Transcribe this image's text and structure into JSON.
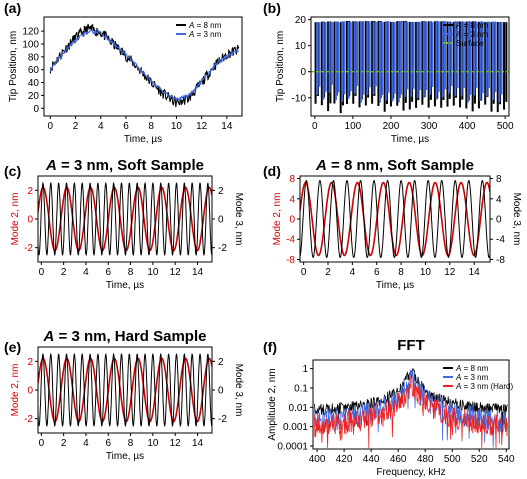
{
  "chart_data": [
    {
      "panel": "(a)",
      "type": "line",
      "title": "",
      "xlabel": "Time, µs",
      "ylabel": "Tip Position, nm",
      "xlim": [
        -0.5,
        15.2
      ],
      "ylim": [
        -12,
        142
      ],
      "xticks": [
        0,
        2,
        4,
        6,
        8,
        10,
        12,
        14
      ],
      "yticks": [
        0,
        20,
        40,
        60,
        80,
        100,
        120
      ],
      "legend_position": "top-right",
      "series": [
        {
          "name": "A = 8 nm",
          "color": "#000000",
          "x": [
            0,
            1,
            2,
            3,
            4,
            5,
            6,
            7,
            8,
            9,
            10,
            11,
            12,
            13,
            14,
            15
          ],
          "y": [
            62,
            88,
            110,
            124,
            118,
            100,
            82,
            62,
            40,
            22,
            8,
            16,
            40,
            66,
            84,
            92
          ]
        },
        {
          "name": "A = 3 nm",
          "color": "#4169e1",
          "x": [
            0,
            1,
            2,
            3,
            4,
            5,
            6,
            7,
            8,
            9,
            10,
            11,
            12,
            13,
            14,
            15
          ],
          "y": [
            60,
            85,
            106,
            120,
            117,
            101,
            83,
            63,
            43,
            25,
            14,
            20,
            42,
            65,
            82,
            90
          ]
        }
      ]
    },
    {
      "panel": "(b)",
      "type": "line",
      "title": "",
      "xlabel": "Time, µs",
      "ylabel": "Tip Position, nm",
      "xlim": [
        -10,
        510
      ],
      "ylim": [
        -17,
        21
      ],
      "xticks": [
        0,
        100,
        200,
        300,
        400,
        500
      ],
      "yticks": [
        -10,
        0,
        10,
        20
      ],
      "legend_position": "top-right",
      "series": [
        {
          "name": "A = 8 nm",
          "color": "#000000",
          "amplitude_peak_nm": 19,
          "min_nm": -15
        },
        {
          "name": "A = 3 nm",
          "color": "#4169e1",
          "amplitude_peak_nm": 19,
          "min_nm": -10
        },
        {
          "name": "Surface",
          "color": "#66bb22",
          "y": 0,
          "style": "dashed"
        }
      ]
    },
    {
      "panel": "(c)",
      "type": "line",
      "title": "A = 3 nm, Soft Sample",
      "xlabel": "Time, µs",
      "ylabel": "Mode 2, nm",
      "y2label": "Mode 3, nm",
      "xlim": [
        -0.3,
        15.3
      ],
      "ylim": [
        -3,
        3
      ],
      "y2lim": [
        -3,
        3
      ],
      "xticks": [
        0,
        2,
        4,
        6,
        8,
        10,
        12,
        14
      ],
      "yticks": [
        -2,
        0,
        2
      ],
      "y2ticks": [
        -2,
        0,
        2
      ],
      "series": [
        {
          "name": "Mode 2",
          "axis": "left",
          "color": "#cc0000",
          "amplitude": 2.2,
          "frequency_mhz": 0.47
        },
        {
          "name": "Mode 3",
          "axis": "right",
          "color": "#000000",
          "amplitude": 2.5,
          "frequency_mhz": 1.42
        }
      ]
    },
    {
      "panel": "(d)",
      "type": "line",
      "title": "A = 8 nm, Soft Sample",
      "xlabel": "Time, µs",
      "ylabel": "Mode 2, nm",
      "y2label": "Mode 3, nm",
      "xlim": [
        -0.3,
        15.3
      ],
      "ylim": [
        -8.5,
        8.5
      ],
      "y2lim": [
        -8.5,
        8.5
      ],
      "xticks": [
        0,
        2,
        4,
        6,
        8,
        10,
        12,
        14
      ],
      "yticks": [
        -8,
        -4,
        0,
        4,
        8
      ],
      "y2ticks": [
        -8,
        -4,
        0,
        4,
        8
      ],
      "series": [
        {
          "name": "Mode 2",
          "axis": "left",
          "color": "#cc0000",
          "amplitude": 7.2,
          "frequency_mhz": 0.47
        },
        {
          "name": "Mode 3",
          "axis": "right",
          "color": "#000000",
          "amplitude": 7.6,
          "frequency_mhz": 0.9
        }
      ]
    },
    {
      "panel": "(e)",
      "type": "line",
      "title": "A = 3 nm, Hard Sample",
      "xlabel": "Time, µs",
      "ylabel": "Mode 2, nm",
      "y2label": "Mode 3, nm",
      "xlim": [
        -0.3,
        15.3
      ],
      "ylim": [
        -3,
        3
      ],
      "y2lim": [
        -3,
        3
      ],
      "xticks": [
        0,
        2,
        4,
        6,
        8,
        10,
        12,
        14
      ],
      "yticks": [
        -2,
        0,
        2
      ],
      "y2ticks": [
        -2,
        0,
        2
      ],
      "series": [
        {
          "name": "Mode 2",
          "axis": "left",
          "color": "#cc0000",
          "amplitude": 2.2,
          "frequency_mhz": 0.47
        },
        {
          "name": "Mode 3",
          "axis": "right",
          "color": "#000000",
          "amplitude": 2.5,
          "frequency_mhz": 1.42
        }
      ]
    },
    {
      "panel": "(f)",
      "type": "line",
      "title": "FFT",
      "xlabel": "Frequency, kHz",
      "ylabel": "Amplitude 2, nm",
      "xlim": [
        397,
        542
      ],
      "ylim": [
        7e-05,
        2.8
      ],
      "yscale": "log",
      "xticks": [
        400,
        420,
        440,
        460,
        480,
        500,
        520,
        540
      ],
      "yticks": [
        0.0001,
        0.001,
        0.01,
        0.1,
        1
      ],
      "ytick_labels": [
        "0.0001",
        "0.001",
        "0.01",
        "0.1",
        "1"
      ],
      "legend_position": "top-right",
      "series": [
        {
          "name": "A = 8 nm",
          "color": "#000000",
          "peak_khz": 470,
          "peak_value": 1.3,
          "floor": 0.01
        },
        {
          "name": "A = 3 nm",
          "color": "#4169e1",
          "peak_khz": 470,
          "peak_value": 1.0,
          "floor": 0.004
        },
        {
          "name": "A = 3 nm (Hard)",
          "color": "#ee2222",
          "peak_khz": 470,
          "peak_value": 0.6,
          "floor": 0.002
        }
      ]
    }
  ]
}
